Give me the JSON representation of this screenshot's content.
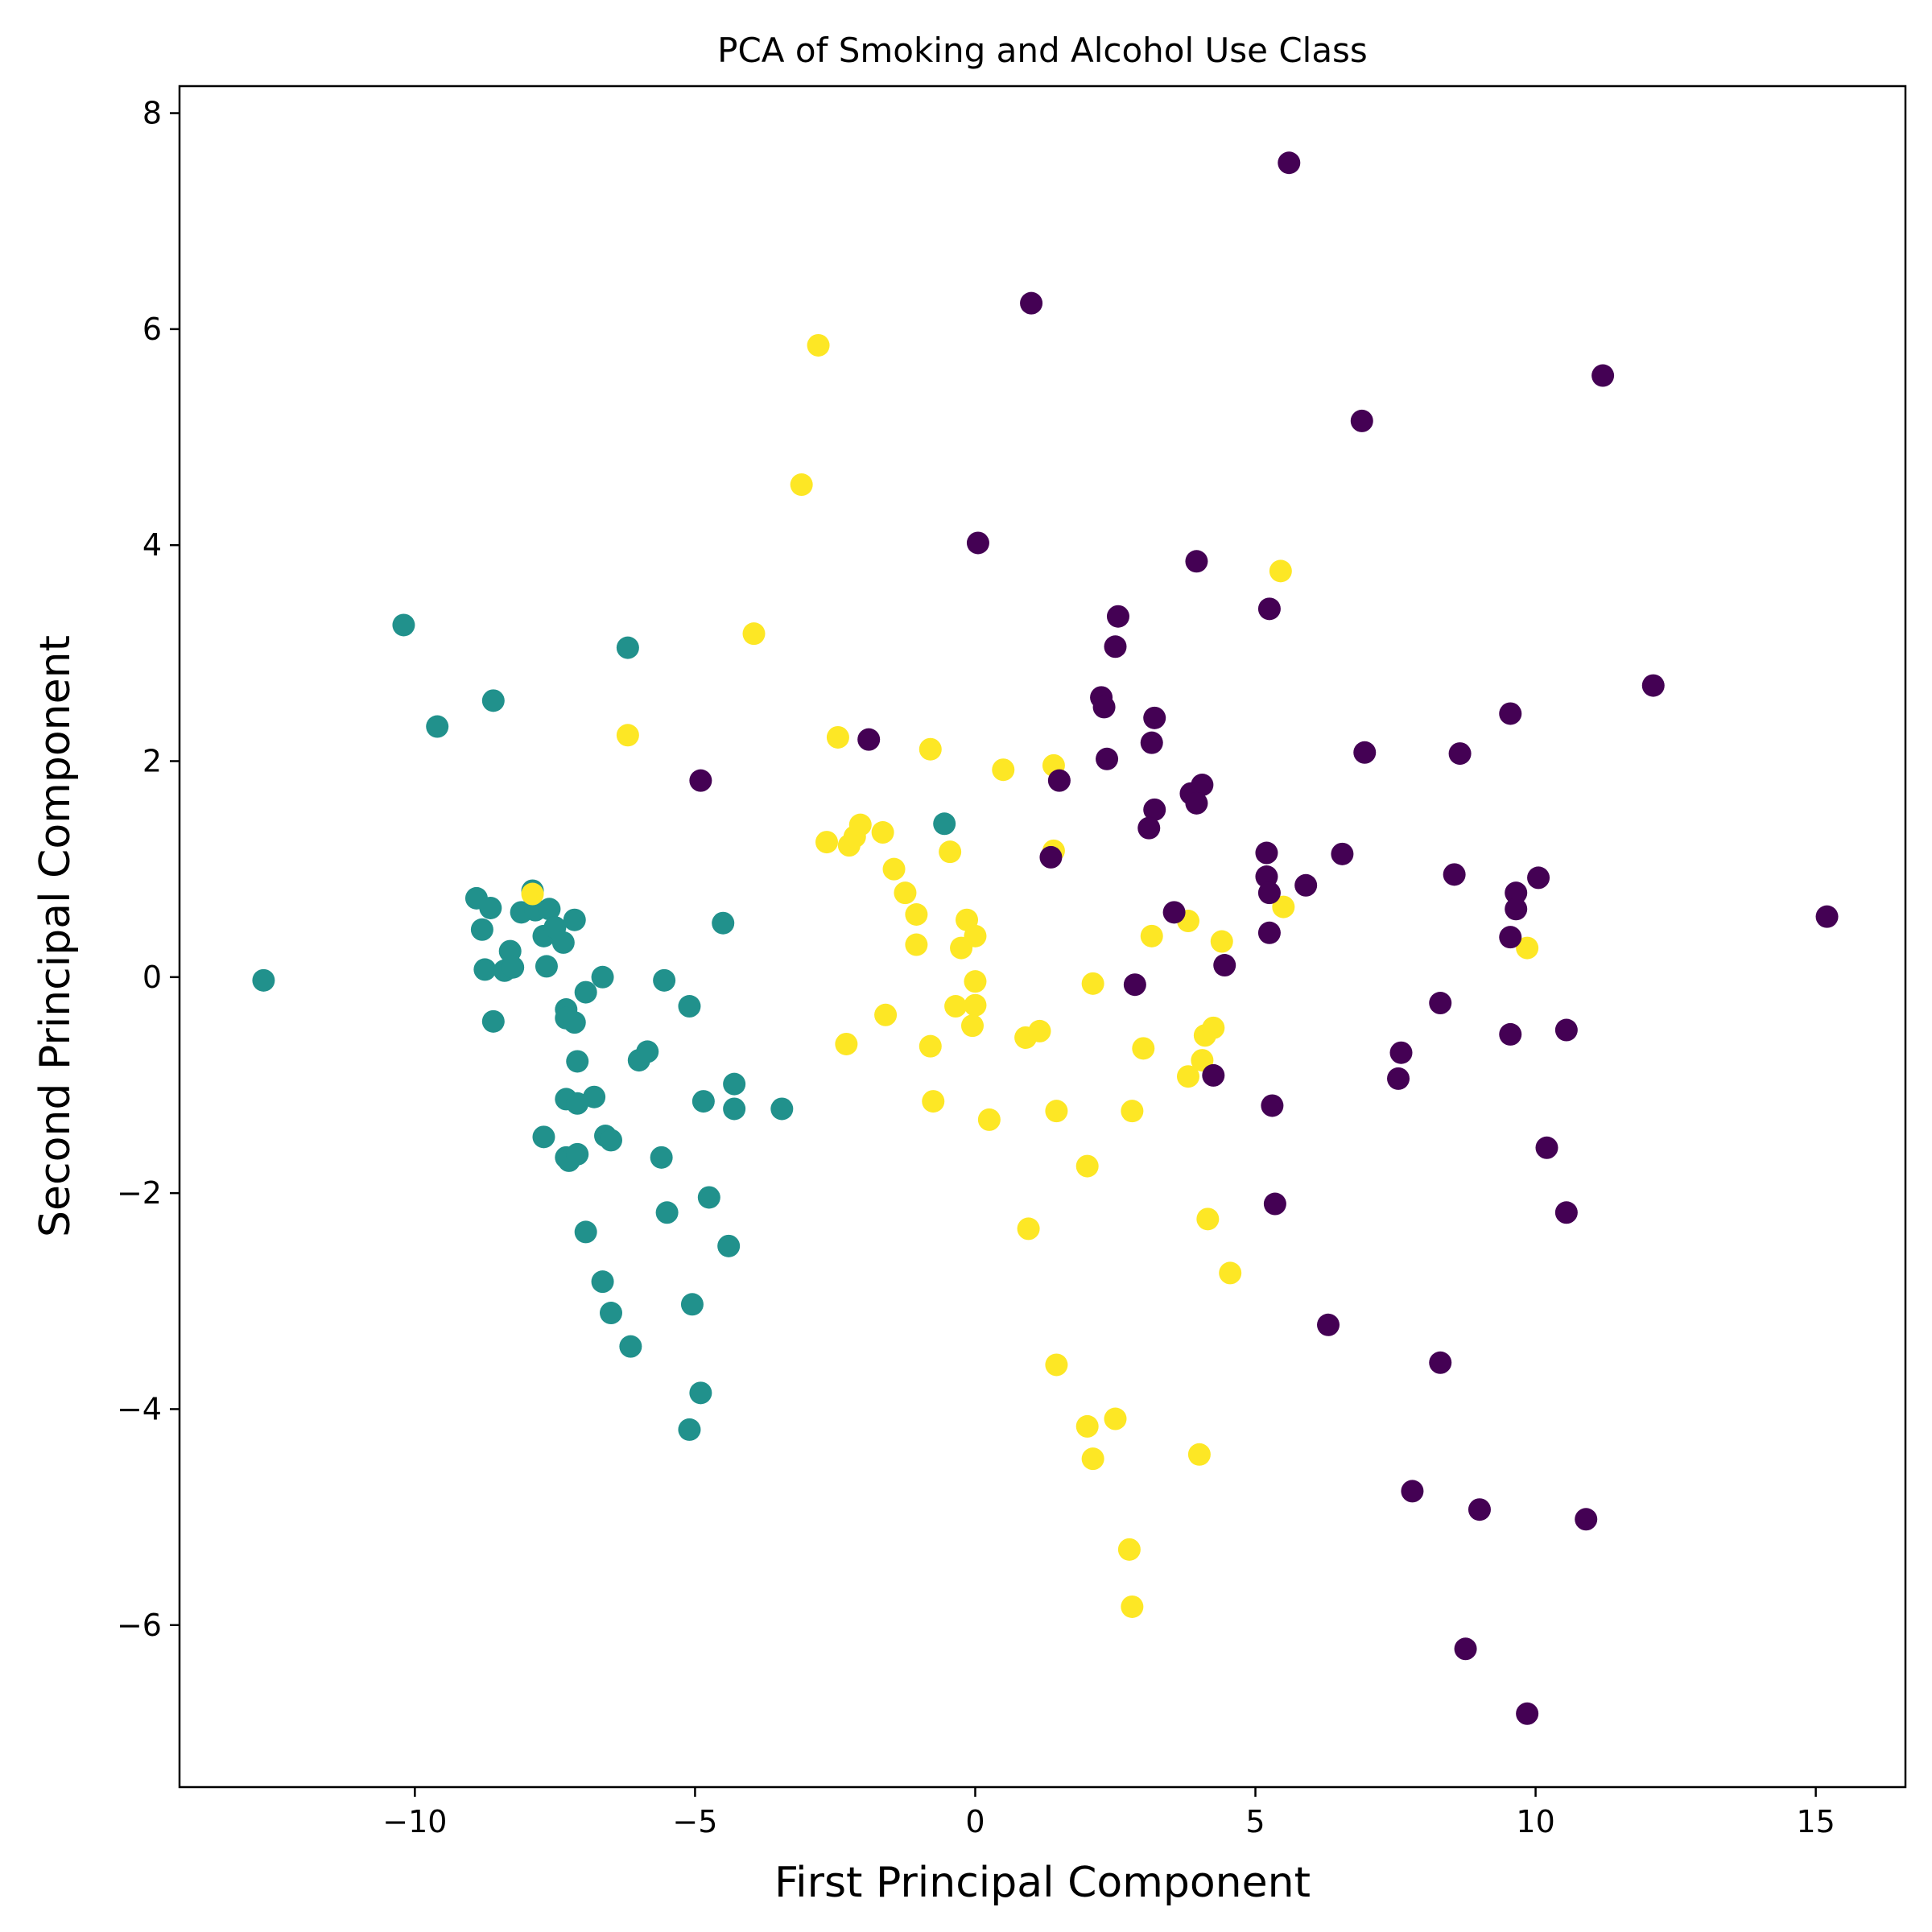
{
  "chart_data": {
    "type": "scatter",
    "title": "PCA of Smoking and Alcohol Use Class",
    "xlabel": "First Principal Component",
    "ylabel": "Second Principal Component",
    "xlim": [
      -14.2,
      16.6
    ],
    "ylim": [
      -7.5,
      8.25
    ],
    "xticks": [
      -10,
      -5,
      0,
      5,
      10,
      15
    ],
    "xtick_labels": [
      "−10",
      "−5",
      "0",
      "5",
      "10",
      "15"
    ],
    "yticks": [
      -6,
      -4,
      -2,
      0,
      2,
      4,
      6,
      8
    ],
    "ytick_labels": [
      "−6",
      "−4",
      "−2",
      "0",
      "2",
      "4",
      "6",
      "8"
    ],
    "grid": false,
    "legend": false,
    "colors": {
      "class_0": "#440154",
      "class_1": "#21918c",
      "class_2": "#fde725"
    },
    "series": [
      {
        "color": "#21918c",
        "points": [
          [
            -12.7,
            -0.03
          ],
          [
            -10.2,
            3.26
          ],
          [
            -9.6,
            2.32
          ],
          [
            -8.6,
            2.56
          ],
          [
            -6.2,
            3.05
          ],
          [
            -8.9,
            0.73
          ],
          [
            -8.8,
            0.44
          ],
          [
            -8.75,
            0.07
          ],
          [
            -8.65,
            0.64
          ],
          [
            -8.6,
            -0.41
          ],
          [
            -8.4,
            0.06
          ],
          [
            -8.3,
            0.24
          ],
          [
            -8.25,
            0.09
          ],
          [
            -8.1,
            0.6
          ],
          [
            -7.9,
            0.8
          ],
          [
            -7.85,
            0.62
          ],
          [
            -7.7,
            0.38
          ],
          [
            -7.65,
            0.1
          ],
          [
            -7.6,
            0.63
          ],
          [
            -7.5,
            0.46
          ],
          [
            -7.35,
            0.32
          ],
          [
            -7.3,
            -0.3
          ],
          [
            -7.3,
            -0.38
          ],
          [
            -7.15,
            0.53
          ],
          [
            -7.15,
            -0.42
          ],
          [
            -7.1,
            -0.78
          ],
          [
            -7.3,
            -1.13
          ],
          [
            -7.1,
            -1.17
          ],
          [
            -7.7,
            -1.48
          ],
          [
            -6.95,
            -0.14
          ],
          [
            -6.8,
            -1.11
          ],
          [
            -6.65,
            0.0
          ],
          [
            -6.6,
            -1.47
          ],
          [
            -6.5,
            -1.51
          ],
          [
            -7.3,
            -1.67
          ],
          [
            -7.25,
            -1.7
          ],
          [
            -7.1,
            -1.64
          ],
          [
            -6.95,
            -2.36
          ],
          [
            -6.65,
            -2.82
          ],
          [
            -6.5,
            -3.11
          ],
          [
            -6.15,
            -3.42
          ],
          [
            -6.0,
            -0.77
          ],
          [
            -5.85,
            -0.69
          ],
          [
            -5.6,
            -1.67
          ],
          [
            -5.55,
            -0.03
          ],
          [
            -5.5,
            -2.18
          ],
          [
            -5.1,
            -0.27
          ],
          [
            -5.05,
            -3.03
          ],
          [
            -5.1,
            -4.19
          ],
          [
            -4.9,
            -3.85
          ],
          [
            -4.85,
            -1.15
          ],
          [
            -4.75,
            -2.04
          ],
          [
            -4.5,
            0.5
          ],
          [
            -4.4,
            -2.49
          ],
          [
            -4.3,
            -0.99
          ],
          [
            -4.3,
            -1.22
          ],
          [
            -3.45,
            -1.22
          ],
          [
            -0.55,
            1.42
          ]
        ]
      },
      {
        "color": "#fde725",
        "points": [
          [
            -2.8,
            5.85
          ],
          [
            -3.1,
            4.56
          ],
          [
            -3.95,
            3.18
          ],
          [
            -6.2,
            2.24
          ],
          [
            -2.45,
            2.22
          ],
          [
            -0.8,
            2.11
          ],
          [
            0.5,
            1.92
          ],
          [
            1.4,
            1.96
          ],
          [
            -2.65,
            1.25
          ],
          [
            -2.25,
            1.22
          ],
          [
            -2.15,
            1.3
          ],
          [
            -2.05,
            1.41
          ],
          [
            -1.65,
            1.34
          ],
          [
            -1.45,
            1.0
          ],
          [
            -1.25,
            0.78
          ],
          [
            -1.05,
            0.58
          ],
          [
            -1.05,
            0.3
          ],
          [
            -0.45,
            1.16
          ],
          [
            1.4,
            1.17
          ],
          [
            -0.15,
            0.53
          ],
          [
            0.0,
            0.38
          ],
          [
            -0.25,
            0.27
          ],
          [
            -7.9,
            0.77
          ],
          [
            3.15,
            0.38
          ],
          [
            3.8,
            0.52
          ],
          [
            4.4,
            0.33
          ],
          [
            5.5,
            0.65
          ],
          [
            5.45,
            3.76
          ],
          [
            9.85,
            0.27
          ],
          [
            0.0,
            -0.04
          ],
          [
            -0.35,
            -0.27
          ],
          [
            0.0,
            -0.26
          ],
          [
            -0.05,
            -0.45
          ],
          [
            0.9,
            -0.56
          ],
          [
            1.15,
            -0.5
          ],
          [
            2.1,
            -0.06
          ],
          [
            -1.6,
            -0.35
          ],
          [
            -2.3,
            -0.62
          ],
          [
            -0.8,
            -0.64
          ],
          [
            -0.75,
            -1.15
          ],
          [
            0.25,
            -1.32
          ],
          [
            1.45,
            -1.24
          ],
          [
            2.8,
            -1.24
          ],
          [
            3.0,
            -0.66
          ],
          [
            3.8,
            -0.92
          ],
          [
            4.05,
            -0.77
          ],
          [
            4.1,
            -0.54
          ],
          [
            4.25,
            -0.47
          ],
          [
            2.0,
            -1.75
          ],
          [
            0.95,
            -2.33
          ],
          [
            4.15,
            -2.24
          ],
          [
            4.55,
            -2.74
          ],
          [
            1.45,
            -3.59
          ],
          [
            2.0,
            -4.16
          ],
          [
            2.5,
            -4.09
          ],
          [
            2.1,
            -4.46
          ],
          [
            4.0,
            -4.42
          ],
          [
            2.75,
            -5.3
          ],
          [
            2.8,
            -5.83
          ]
        ]
      },
      {
        "color": "#440154",
        "points": [
          [
            5.6,
            7.54
          ],
          [
            1.0,
            6.24
          ],
          [
            11.2,
            5.57
          ],
          [
            6.9,
            5.15
          ],
          [
            0.05,
            4.02
          ],
          [
            3.95,
            3.85
          ],
          [
            5.25,
            3.41
          ],
          [
            2.55,
            3.34
          ],
          [
            2.5,
            3.06
          ],
          [
            12.1,
            2.7
          ],
          [
            2.25,
            2.59
          ],
          [
            2.3,
            2.5
          ],
          [
            9.55,
            2.44
          ],
          [
            3.2,
            2.4
          ],
          [
            3.15,
            2.17
          ],
          [
            6.95,
            2.08
          ],
          [
            8.65,
            2.07
          ],
          [
            2.35,
            2.02
          ],
          [
            -1.9,
            2.2
          ],
          [
            -4.9,
            1.82
          ],
          [
            1.5,
            1.82
          ],
          [
            3.85,
            1.7
          ],
          [
            4.05,
            1.78
          ],
          [
            3.95,
            1.61
          ],
          [
            3.2,
            1.55
          ],
          [
            3.1,
            1.38
          ],
          [
            1.35,
            1.11
          ],
          [
            5.2,
            1.15
          ],
          [
            6.55,
            1.14
          ],
          [
            5.2,
            0.93
          ],
          [
            5.25,
            0.78
          ],
          [
            5.9,
            0.85
          ],
          [
            8.55,
            0.95
          ],
          [
            9.65,
            0.78
          ],
          [
            10.05,
            0.92
          ],
          [
            9.65,
            0.63
          ],
          [
            3.55,
            0.6
          ],
          [
            5.25,
            0.41
          ],
          [
            9.55,
            0.37
          ],
          [
            15.2,
            0.56
          ],
          [
            4.45,
            0.11
          ],
          [
            2.85,
            -0.07
          ],
          [
            8.3,
            -0.24
          ],
          [
            9.55,
            -0.53
          ],
          [
            10.55,
            -0.49
          ],
          [
            7.6,
            -0.7
          ],
          [
            7.55,
            -0.94
          ],
          [
            4.25,
            -0.91
          ],
          [
            5.3,
            -1.19
          ],
          [
            10.2,
            -1.58
          ],
          [
            5.35,
            -2.1
          ],
          [
            10.55,
            -2.18
          ],
          [
            6.3,
            -3.22
          ],
          [
            8.3,
            -3.57
          ],
          [
            7.8,
            -4.76
          ],
          [
            9.0,
            -4.93
          ],
          [
            10.9,
            -5.02
          ],
          [
            8.75,
            -6.22
          ],
          [
            9.85,
            -6.82
          ]
        ]
      }
    ]
  }
}
